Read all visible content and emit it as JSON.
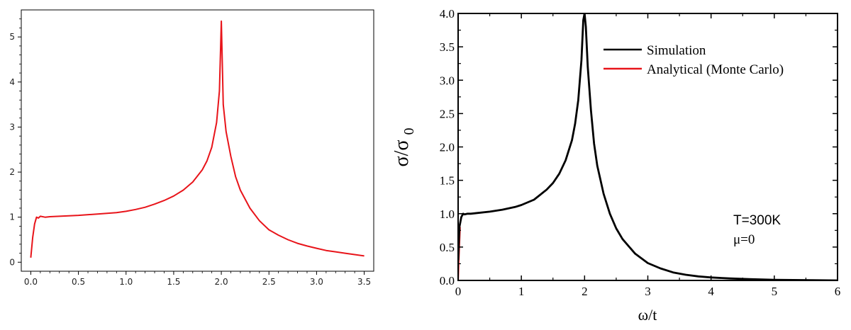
{
  "chart_data": [
    {
      "type": "line",
      "title": "",
      "xlabel": "",
      "ylabel": "",
      "xlim": [
        -0.1,
        3.6
      ],
      "ylim": [
        -0.2,
        5.6
      ],
      "xticks": [
        "0.0",
        "0.5",
        "1.0",
        "1.5",
        "2.0",
        "2.5",
        "3.0",
        "3.5"
      ],
      "yticks": [
        "0",
        "1",
        "2",
        "3",
        "4",
        "5"
      ],
      "grid": false,
      "series": [
        {
          "color": "#e8141a",
          "x": [
            0.0,
            0.02,
            0.04,
            0.06,
            0.08,
            0.1,
            0.15,
            0.2,
            0.3,
            0.5,
            0.7,
            0.9,
            1.0,
            1.1,
            1.2,
            1.3,
            1.4,
            1.5,
            1.6,
            1.7,
            1.8,
            1.85,
            1.9,
            1.95,
            1.98,
            2.0,
            2.02,
            2.05,
            2.1,
            2.15,
            2.2,
            2.3,
            2.4,
            2.5,
            2.6,
            2.7,
            2.8,
            2.9,
            3.0,
            3.1,
            3.2,
            3.3,
            3.4,
            3.5
          ],
          "y": [
            0.1,
            0.55,
            0.85,
            1.0,
            0.98,
            1.02,
            1.0,
            1.01,
            1.02,
            1.04,
            1.07,
            1.1,
            1.13,
            1.17,
            1.22,
            1.29,
            1.37,
            1.47,
            1.6,
            1.78,
            2.05,
            2.25,
            2.55,
            3.1,
            3.8,
            5.35,
            3.5,
            2.9,
            2.35,
            1.9,
            1.6,
            1.2,
            0.92,
            0.72,
            0.6,
            0.5,
            0.42,
            0.36,
            0.31,
            0.26,
            0.23,
            0.2,
            0.17,
            0.14
          ]
        }
      ]
    },
    {
      "type": "line",
      "title": "",
      "xlabel": "ω/t",
      "ylabel": "σ/σ0",
      "xlim": [
        0,
        6
      ],
      "ylim": [
        0,
        4
      ],
      "xticks": [
        "0",
        "1",
        "2",
        "3",
        "4",
        "5",
        "6"
      ],
      "yticks": [
        "0.0",
        "0.5",
        "1.0",
        "1.5",
        "2.0",
        "2.5",
        "3.0",
        "3.5",
        "4.0"
      ],
      "grid": false,
      "legend": "top-right",
      "annotations": [
        "T=300K",
        "μ=0"
      ],
      "series": [
        {
          "name": "Simulation",
          "color": "#000000",
          "x": [
            0.0,
            0.02,
            0.05,
            0.08,
            0.1,
            0.15,
            0.2,
            0.3,
            0.5,
            0.7,
            0.9,
            1.0,
            1.2,
            1.4,
            1.5,
            1.6,
            1.7,
            1.8,
            1.85,
            1.9,
            1.95,
            1.98,
            2.0,
            2.02,
            2.05,
            2.1,
            2.15,
            2.2,
            2.3,
            2.4,
            2.5,
            2.6,
            2.8,
            3.0,
            3.2,
            3.4,
            3.6,
            3.8,
            4.0,
            4.3,
            4.6,
            5.0,
            5.3,
            5.6,
            6.0
          ],
          "y": [
            0.3,
            0.8,
            0.95,
            1.0,
            0.99,
            1.0,
            1.0,
            1.01,
            1.03,
            1.06,
            1.1,
            1.13,
            1.21,
            1.36,
            1.46,
            1.6,
            1.8,
            2.1,
            2.35,
            2.7,
            3.3,
            3.9,
            4.0,
            3.8,
            3.2,
            2.55,
            2.05,
            1.72,
            1.3,
            1.0,
            0.78,
            0.62,
            0.4,
            0.26,
            0.18,
            0.12,
            0.085,
            0.06,
            0.045,
            0.03,
            0.02,
            0.01,
            0.006,
            0.003,
            0.0
          ]
        },
        {
          "name": "Analytical (Monte Carlo)",
          "color": "#e8141a",
          "x": [
            0.0,
            0.01,
            0.03
          ],
          "y": [
            0.0,
            0.3,
            0.8
          ]
        }
      ]
    }
  ]
}
